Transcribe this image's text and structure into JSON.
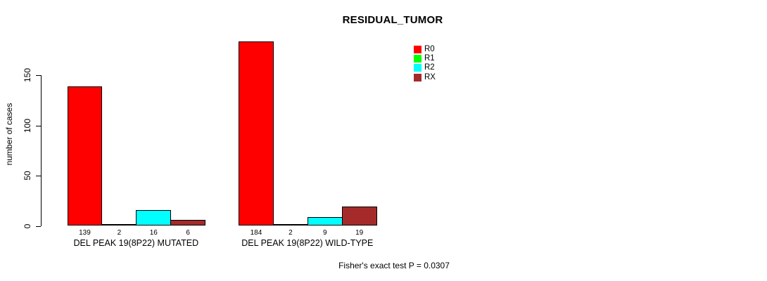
{
  "chart_data": {
    "type": "bar",
    "title": "RESIDUAL_TUMOR",
    "ylabel": "number of cases",
    "xlabel": "",
    "ylim": [
      0,
      150
    ],
    "yticks": [
      0,
      50,
      100,
      150
    ],
    "series": [
      "R0",
      "R1",
      "R2",
      "RX"
    ],
    "colors": [
      "#FF0000",
      "#00FF00",
      "#00FFFF",
      "#A52A2A"
    ],
    "groups": [
      {
        "label": "DEL PEAK 19(8P22) MUTATED",
        "values": [
          139,
          2,
          16,
          6
        ]
      },
      {
        "label": "DEL PEAK 19(8P22) WILD-TYPE",
        "values": [
          184,
          2,
          9,
          19
        ]
      }
    ],
    "value_labels_shown": true,
    "legend_position": "top-right",
    "grid": false,
    "annotation": "Fisher's exact test P = 0.0307"
  }
}
